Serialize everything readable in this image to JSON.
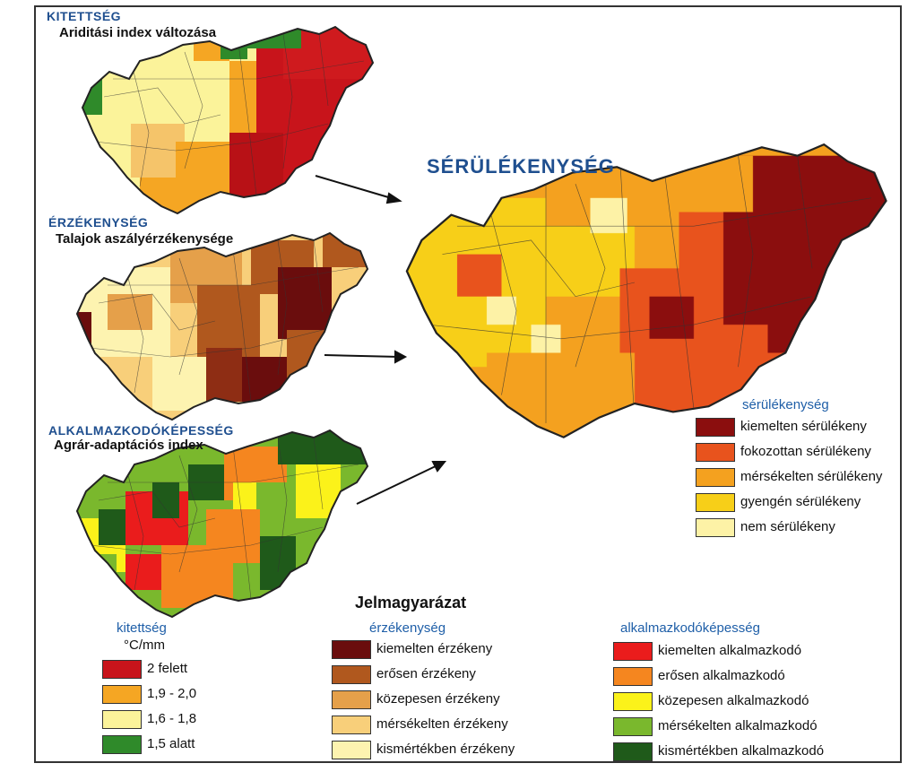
{
  "panels": {
    "exposure": {
      "section": "KITETTSÉG",
      "subtitle": "Ariditási index változása"
    },
    "sensitivity": {
      "section": "ÉRZÉKENYSÉG",
      "subtitle": "Talajok aszályérzékenysége"
    },
    "adaptive": {
      "section": "ALKALMAZKODÓKÉPESSÉG",
      "subtitle": "Agrár-adaptációs index"
    },
    "vulnerability": {
      "title": "SÉRÜLÉKENYSÉG"
    }
  },
  "legend_main": {
    "title": "sérülékenység",
    "items": [
      {
        "label": "kiemelten sérülékeny",
        "color": "#8b0e0e"
      },
      {
        "label": "fokozottan sérülékeny",
        "color": "#e8531d"
      },
      {
        "label": "mérsékelten sérülékeny",
        "color": "#f4a11f"
      },
      {
        "label": "gyengén sérülékeny",
        "color": "#f7cf18"
      },
      {
        "label": "nem sérülékeny",
        "color": "#fdf2a6"
      }
    ]
  },
  "legend_heading": "Jelmagyarázat",
  "legend_exposure": {
    "title": "kitettség",
    "unit": "°C/mm",
    "items": [
      {
        "label": "2 felett",
        "color": "#c8141b"
      },
      {
        "label": "1,9 - 2,0",
        "color": "#f5a623"
      },
      {
        "label": "1,6 - 1,8",
        "color": "#fbf39a"
      },
      {
        "label": "1,5 alatt",
        "color": "#2f8a2a"
      }
    ]
  },
  "legend_sensitivity": {
    "title": "érzékenység",
    "items": [
      {
        "label": "kiemelten érzékeny",
        "color": "#6a0d0d"
      },
      {
        "label": "erősen érzékeny",
        "color": "#b0581e"
      },
      {
        "label": "közepesen érzékeny",
        "color": "#e5a04a"
      },
      {
        "label": "mérsékelten érzékeny",
        "color": "#f8cf7a"
      },
      {
        "label": "kismértékben érzékeny",
        "color": "#fdf3b0"
      }
    ]
  },
  "legend_adaptive": {
    "title": "alkalmazkodóképesség",
    "items": [
      {
        "label": "kiemelten alkalmazkodó",
        "color": "#ea1c1c"
      },
      {
        "label": "erősen alkalmazkodó",
        "color": "#f5861f"
      },
      {
        "label": "közepesen alkalmazkodó",
        "color": "#fbf21a"
      },
      {
        "label": "mérsékelten alkalmazkodó",
        "color": "#7ab82d"
      },
      {
        "label": "kismértékben alkalmazkodó",
        "color": "#1f5a1a"
      }
    ]
  }
}
